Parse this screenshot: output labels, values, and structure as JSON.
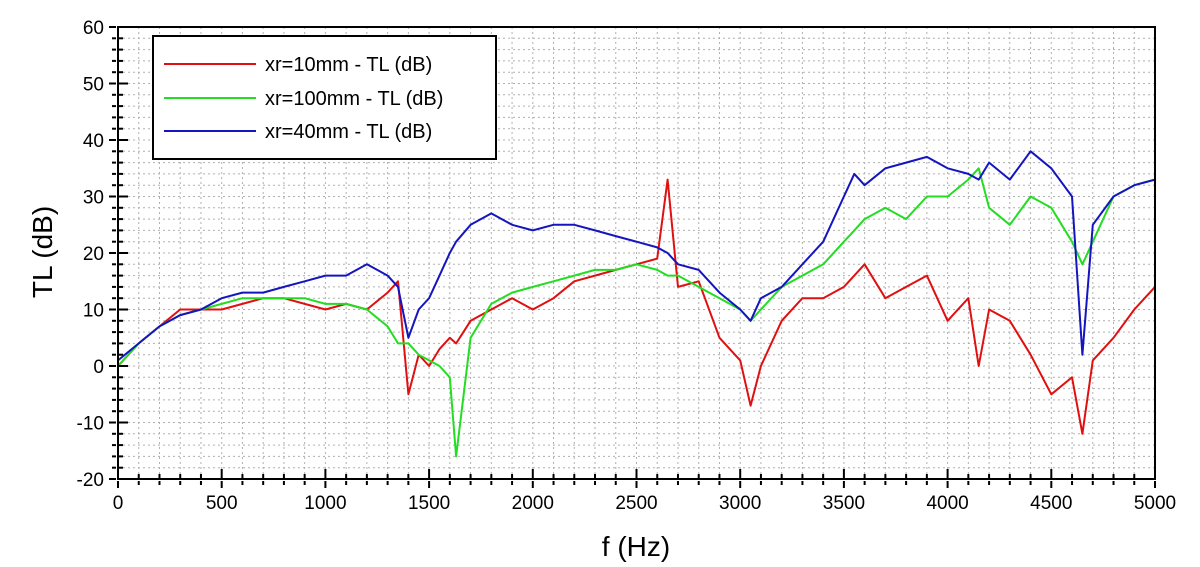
{
  "chart_data": {
    "type": "line",
    "title": "",
    "xlabel": "f (Hz)",
    "ylabel": "TL (dB)",
    "xlim": [
      0,
      5000
    ],
    "ylim": [
      -20,
      60
    ],
    "x_ticks": [
      0,
      500,
      1000,
      1500,
      2000,
      2500,
      3000,
      3500,
      4000,
      4500,
      5000
    ],
    "y_ticks": [
      -20,
      -10,
      0,
      10,
      20,
      30,
      40,
      50,
      60
    ],
    "grid": true,
    "legend_position": "top-left",
    "x": [
      0,
      100,
      200,
      300,
      400,
      500,
      600,
      700,
      800,
      900,
      1000,
      1100,
      1200,
      1300,
      1350,
      1400,
      1450,
      1500,
      1550,
      1600,
      1630,
      1700,
      1800,
      1900,
      2000,
      2100,
      2200,
      2300,
      2400,
      2500,
      2600,
      2650,
      2700,
      2800,
      2900,
      3000,
      3050,
      3100,
      3200,
      3300,
      3400,
      3500,
      3550,
      3600,
      3700,
      3800,
      3900,
      4000,
      4100,
      4150,
      4200,
      4300,
      4400,
      4500,
      4600,
      4650,
      4700,
      4800,
      4900,
      5000
    ],
    "series": [
      {
        "name": "xr=10mm - TL (dB)",
        "color": "#e01010",
        "values": [
          0,
          4,
          7,
          10,
          10,
          10,
          11,
          12,
          12,
          11,
          10,
          11,
          10,
          13,
          15,
          -5,
          2,
          0,
          3,
          5,
          4,
          8,
          10,
          12,
          10,
          12,
          15,
          16,
          17,
          18,
          19,
          33,
          14,
          15,
          5,
          1,
          -7,
          0,
          8,
          12,
          12,
          14,
          16,
          18,
          12,
          14,
          16,
          8,
          12,
          0,
          10,
          8,
          2,
          -5,
          -2,
          -12,
          1,
          5,
          10,
          14
        ]
      },
      {
        "name": "xr=100mm - TL (dB)",
        "color": "#22dd22",
        "values": [
          0,
          4,
          7,
          9,
          10,
          11,
          12,
          12,
          12,
          12,
          11,
          11,
          10,
          7,
          4,
          4,
          2,
          1,
          0,
          -2,
          -16,
          5,
          11,
          13,
          14,
          15,
          16,
          17,
          17,
          18,
          17,
          16,
          16,
          14,
          12,
          10,
          8,
          10,
          14,
          16,
          18,
          22,
          24,
          26,
          28,
          26,
          30,
          30,
          33,
          35,
          28,
          25,
          30,
          28,
          22,
          18,
          22,
          30,
          32,
          33
        ]
      },
      {
        "name": "xr=40mm - TL (dB)",
        "color": "#1515c0",
        "values": [
          1,
          4,
          7,
          9,
          10,
          12,
          13,
          13,
          14,
          15,
          16,
          16,
          18,
          16,
          14,
          5,
          10,
          12,
          16,
          20,
          22,
          25,
          27,
          25,
          24,
          25,
          25,
          24,
          23,
          22,
          21,
          20,
          18,
          17,
          13,
          10,
          8,
          12,
          14,
          18,
          22,
          30,
          34,
          32,
          35,
          36,
          37,
          35,
          34,
          33,
          36,
          33,
          38,
          35,
          30,
          2,
          25,
          30,
          32,
          33
        ]
      }
    ]
  }
}
